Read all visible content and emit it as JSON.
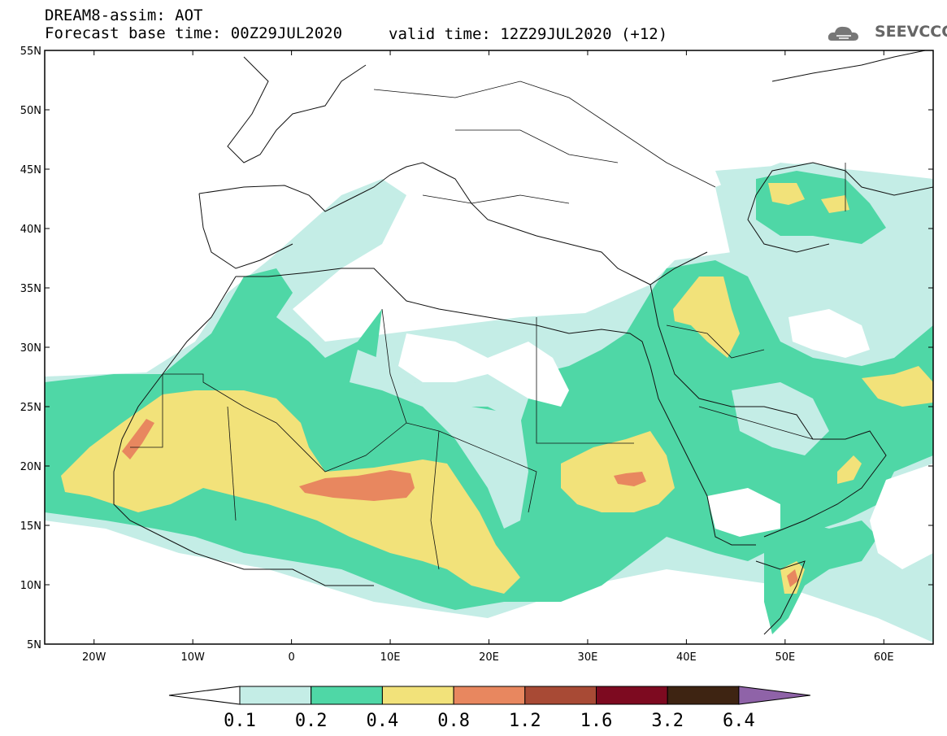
{
  "header": {
    "title": "DREAM8-assim: AOT",
    "base_time": "Forecast base time: 00Z29JUL2020",
    "valid_time": "valid time: 12Z29JUL2020 (+12)"
  },
  "logo": {
    "text": "SEEVCCC",
    "icon": "cloud-icon"
  },
  "axes": {
    "lat_labels": [
      "55N",
      "50N",
      "45N",
      "40N",
      "35N",
      "30N",
      "25N",
      "20N",
      "15N",
      "10N",
      "5N"
    ],
    "lon_labels": [
      "20W",
      "10W",
      "0",
      "10E",
      "20E",
      "30E",
      "40E",
      "50E",
      "60E"
    ],
    "lat_range": [
      5,
      55
    ],
    "lon_range": [
      -25,
      65
    ]
  },
  "colorbar": {
    "levels": [
      "0.1",
      "0.2",
      "0.4",
      "0.8",
      "1.2",
      "1.6",
      "3.2",
      "6.4"
    ],
    "colors": [
      "#ffffff",
      "#c4ede6",
      "#4fd7a6",
      "#f2e27a",
      "#e8875f",
      "#a84a35",
      "#7d0a20",
      "#3e2412",
      "#8f63a8"
    ]
  }
}
